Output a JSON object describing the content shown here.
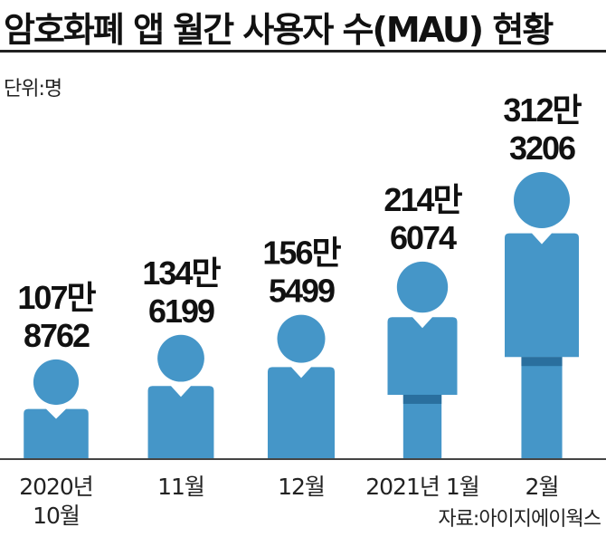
{
  "title": "암호화폐 앱 월간 사용자 수(MAU) 현황",
  "unit_label": "단위:명",
  "source": "자료:아이지에이웍스",
  "colors": {
    "figure": "#4596c8",
    "figure_dark": "#2a6f9e",
    "axis": "#444444",
    "text": "#111111"
  },
  "chart_data": {
    "type": "bar",
    "title": "암호화폐 앱 월간 사용자 수(MAU) 현황",
    "ylabel": "단위:명",
    "categories": [
      "2020년 10월",
      "11월",
      "12월",
      "2021년 1월",
      "2월"
    ],
    "category_lines": [
      [
        "2020년",
        "10월"
      ],
      [
        "11월"
      ],
      [
        "12월"
      ],
      [
        "2021년 1월"
      ],
      [
        "2월"
      ]
    ],
    "values": [
      1078762,
      1346199,
      1565499,
      2146074,
      3123206
    ],
    "value_labels": [
      [
        "107만",
        "8762"
      ],
      [
        "134만",
        "6199"
      ],
      [
        "156만",
        "5499"
      ],
      [
        "214만",
        "6074"
      ],
      [
        "312만",
        "3206"
      ]
    ],
    "ylim": [
      0,
      3123206
    ],
    "grid": false,
    "legend": "none"
  }
}
